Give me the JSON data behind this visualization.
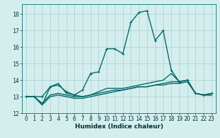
{
  "title": "",
  "xlabel": "Humidex (Indice chaleur)",
  "xlim": [
    -0.5,
    23.5
  ],
  "ylim": [
    12,
    18.6
  ],
  "yticks": [
    12,
    13,
    14,
    15,
    16,
    17,
    18
  ],
  "xticks": [
    0,
    1,
    2,
    3,
    4,
    5,
    6,
    7,
    8,
    9,
    10,
    11,
    12,
    13,
    14,
    15,
    16,
    17,
    18,
    19,
    20,
    21,
    22,
    23
  ],
  "bg_color": "#d4eeee",
  "grid_color": "#aacccc",
  "line_color": "#006868",
  "series": [
    {
      "x": [
        0,
        1,
        2,
        3,
        4,
        5,
        6,
        7,
        8,
        9,
        10,
        11,
        12,
        13,
        14,
        15,
        16,
        17,
        18,
        19,
        20,
        21,
        22,
        23
      ],
      "y": [
        13.0,
        13.0,
        13.0,
        13.6,
        13.7,
        13.3,
        13.1,
        13.4,
        14.4,
        14.5,
        15.9,
        15.9,
        15.6,
        17.5,
        18.1,
        18.2,
        16.4,
        17.0,
        14.6,
        13.9,
        14.0,
        13.2,
        13.1,
        13.2
      ],
      "marker": "+",
      "lw": 1.0
    },
    {
      "x": [
        0,
        1,
        2,
        3,
        4,
        5,
        6,
        7,
        8,
        9,
        10,
        11,
        12,
        13,
        14,
        15,
        16,
        17,
        18,
        19,
        20,
        21,
        22,
        23
      ],
      "y": [
        13.0,
        13.0,
        12.5,
        13.6,
        13.8,
        13.2,
        13.1,
        13.0,
        13.1,
        13.3,
        13.5,
        13.5,
        13.5,
        13.6,
        13.7,
        13.8,
        13.9,
        14.0,
        14.4,
        13.9,
        14.0,
        13.2,
        13.1,
        13.2
      ],
      "marker": null,
      "lw": 1.0
    },
    {
      "x": [
        0,
        1,
        2,
        3,
        4,
        5,
        6,
        7,
        8,
        9,
        10,
        11,
        12,
        13,
        14,
        15,
        16,
        17,
        18,
        19,
        20,
        21,
        22,
        23
      ],
      "y": [
        13.0,
        13.0,
        12.5,
        13.0,
        13.1,
        13.0,
        12.9,
        12.9,
        13.0,
        13.1,
        13.2,
        13.3,
        13.4,
        13.5,
        13.6,
        13.6,
        13.7,
        13.7,
        13.8,
        13.8,
        13.9,
        13.2,
        13.1,
        13.1
      ],
      "marker": null,
      "lw": 1.0
    },
    {
      "x": [
        0,
        1,
        2,
        3,
        4,
        5,
        6,
        7,
        8,
        9,
        10,
        11,
        12,
        13,
        14,
        15,
        16,
        17,
        18,
        19,
        20,
        21,
        22,
        23
      ],
      "y": [
        13.0,
        13.0,
        12.6,
        13.1,
        13.2,
        13.1,
        13.0,
        13.0,
        13.1,
        13.2,
        13.3,
        13.4,
        13.4,
        13.5,
        13.6,
        13.6,
        13.7,
        13.8,
        13.9,
        13.9,
        14.0,
        13.2,
        13.1,
        13.1
      ],
      "marker": null,
      "lw": 1.0
    }
  ],
  "tick_fontsize": 5.5,
  "xlabel_fontsize": 6.5
}
